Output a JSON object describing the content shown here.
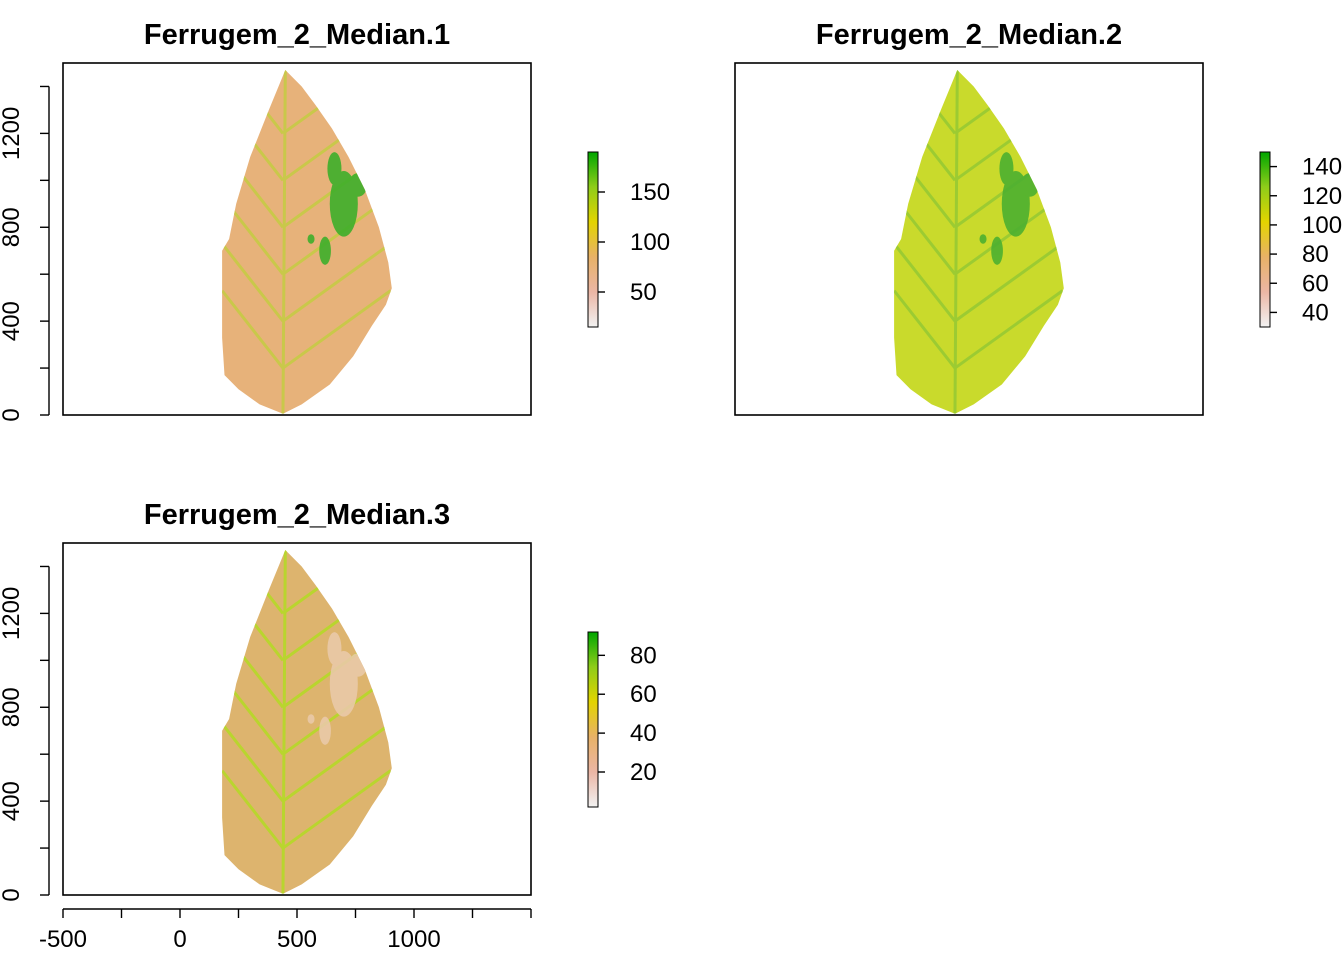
{
  "chart_data": [
    {
      "type": "heatmap",
      "title": "Ferrugem_2_Median.1",
      "xlabel": "",
      "ylabel": "",
      "xlim": [
        -500,
        1500
      ],
      "ylim": [
        0,
        1500
      ],
      "y_ticks": [
        0,
        400,
        800,
        1200
      ],
      "x_ticks": [],
      "legend": {
        "ticks": [
          50,
          100,
          150
        ],
        "range": [
          15,
          190
        ]
      },
      "base_color": "#E7B27A",
      "vein_color": "#C9C84A",
      "lesion_color": "#3DAE2B"
    },
    {
      "type": "heatmap",
      "title": "Ferrugem_2_Median.2",
      "xlabel": "",
      "ylabel": "",
      "xlim": [
        -500,
        1500
      ],
      "ylim": [
        0,
        1500
      ],
      "y_ticks": [],
      "x_ticks": [],
      "legend": {
        "ticks": [
          40,
          60,
          80,
          100,
          120,
          140
        ],
        "range": [
          30,
          150
        ]
      },
      "base_color": "#C9DA2C",
      "vein_color": "#9CCB32",
      "lesion_color": "#4CB030"
    },
    {
      "type": "heatmap",
      "title": "Ferrugem_2_Median.3",
      "xlabel": "",
      "ylabel": "",
      "xlim": [
        -500,
        1500
      ],
      "ylim": [
        0,
        1500
      ],
      "y_ticks": [
        0,
        400,
        800,
        1200
      ],
      "x_ticks": [
        -500,
        0,
        500,
        1000
      ],
      "legend": {
        "ticks": [
          20,
          40,
          60,
          80
        ],
        "range": [
          2,
          92
        ]
      },
      "base_color": "#DDB46E",
      "vein_color": "#B9D52E",
      "lesion_color": "#E9C9A8"
    }
  ],
  "colors": {
    "ramp": [
      "#F2F2F2",
      "#EBB6A5",
      "#E8B267",
      "#E3D400",
      "#8FCD1A",
      "#00A600"
    ]
  }
}
